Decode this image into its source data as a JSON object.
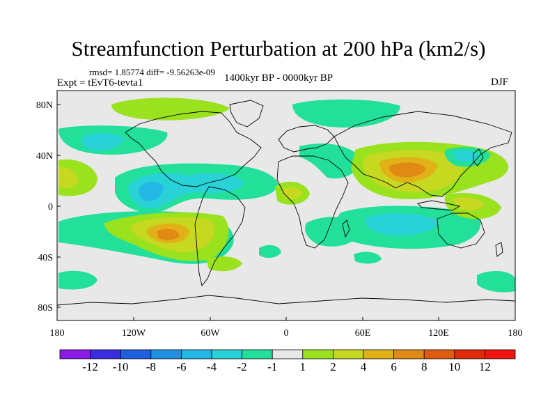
{
  "title": "Streamfunction Perturbation at 200 hPa (km2/s)",
  "stats": "rmsd= 1.85774 diff= -9.56263e-09",
  "experiment": "Expt = tEvT6-tevta1",
  "period": "1400kyr BP - 0000kyr BP",
  "season": "DJF",
  "axes": {
    "x_ticks": [
      "180",
      "120W",
      "60W",
      "0",
      "60E",
      "120E",
      "180"
    ],
    "y_ticks": [
      "80N",
      "40N",
      "0",
      "40S",
      "80S"
    ]
  },
  "colorbar": {
    "labels": [
      "-12",
      "-10",
      "-8",
      "-6",
      "-4",
      "-2",
      "-1",
      "1",
      "2",
      "4",
      "6",
      "8",
      "10",
      "12"
    ],
    "colors": [
      "#8b1ae6",
      "#3a2de0",
      "#1f60e0",
      "#1f90e4",
      "#23b7e6",
      "#28d2d6",
      "#22e09a",
      "#e8e8e8",
      "#9ae21e",
      "#c6d820",
      "#e0b218",
      "#e08a14",
      "#e05a10",
      "#e02a0a",
      "#f21410"
    ]
  },
  "colors": {
    "background": "#e8e8e8",
    "coast": "#000000"
  }
}
